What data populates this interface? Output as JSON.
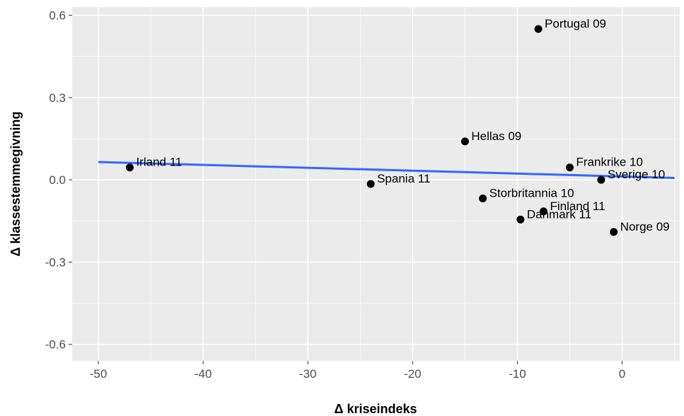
{
  "chart_data": {
    "type": "scatter",
    "title": "",
    "xlabel": "Δ kriseindeks",
    "ylabel": "Δ klassestemmegivning",
    "xlim": [
      -52.5,
      5.5
    ],
    "ylim": [
      -0.66,
      0.63
    ],
    "x_ticks": [
      -50,
      -40,
      -30,
      -20,
      -10,
      0
    ],
    "y_ticks": [
      -0.6,
      -0.3,
      0.0,
      0.3,
      0.6
    ],
    "x_tick_labels": [
      "-50",
      "-40",
      "-30",
      "-20",
      "-10",
      "0"
    ],
    "y_tick_labels": [
      "-0.6",
      "-0.3",
      "0.0",
      "0.3",
      "0.6"
    ],
    "grid": true,
    "points": [
      {
        "label": "Portugal 09",
        "x": -8,
        "y": 0.55
      },
      {
        "label": "Hellas 09",
        "x": -15,
        "y": 0.14
      },
      {
        "label": "Irland 11",
        "x": -47,
        "y": 0.045
      },
      {
        "label": "Frankrike 10",
        "x": -5,
        "y": 0.045
      },
      {
        "label": "Sverige 10",
        "x": -2,
        "y": 0.0
      },
      {
        "label": "Spania 11",
        "x": -24,
        "y": -0.015
      },
      {
        "label": "Storbritannia 10",
        "x": -13.3,
        "y": -0.068
      },
      {
        "label": "Finland 11",
        "x": -7.5,
        "y": -0.115
      },
      {
        "label": "Danmark 11",
        "x": -9.7,
        "y": -0.145
      },
      {
        "label": "Norge 09",
        "x": -0.8,
        "y": -0.19
      }
    ],
    "fit_line": {
      "x": [
        -50,
        5
      ],
      "y": [
        0.065,
        0.007
      ]
    },
    "colors": {
      "panel_bg": "#ebebeb",
      "grid_major": "#ffffff",
      "point": "#000000",
      "fit_line": "#3366ff"
    }
  }
}
